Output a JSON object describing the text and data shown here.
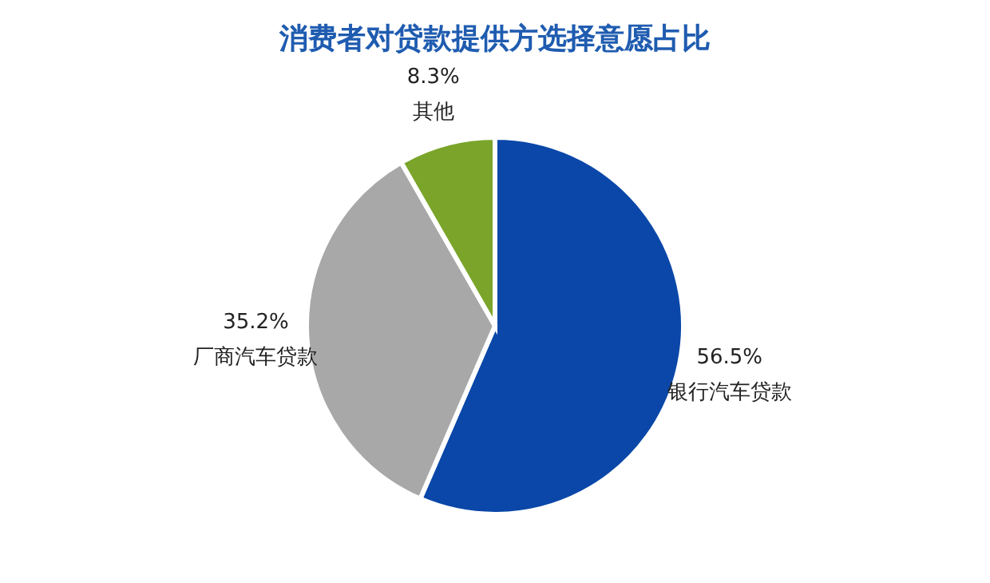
{
  "chart_data": {
    "type": "pie",
    "title": "消费者对贷款提供方选择意愿占比",
    "categories": [
      "银行汽车贷款",
      "厂商汽车贷款",
      "其他"
    ],
    "values": [
      56.5,
      35.2,
      8.3
    ],
    "colors": [
      "#0a47a8",
      "#a8a8a8",
      "#7aa52a"
    ],
    "value_labels": [
      "56.5%",
      "35.2%",
      "8.3%"
    ],
    "legend": false
  }
}
